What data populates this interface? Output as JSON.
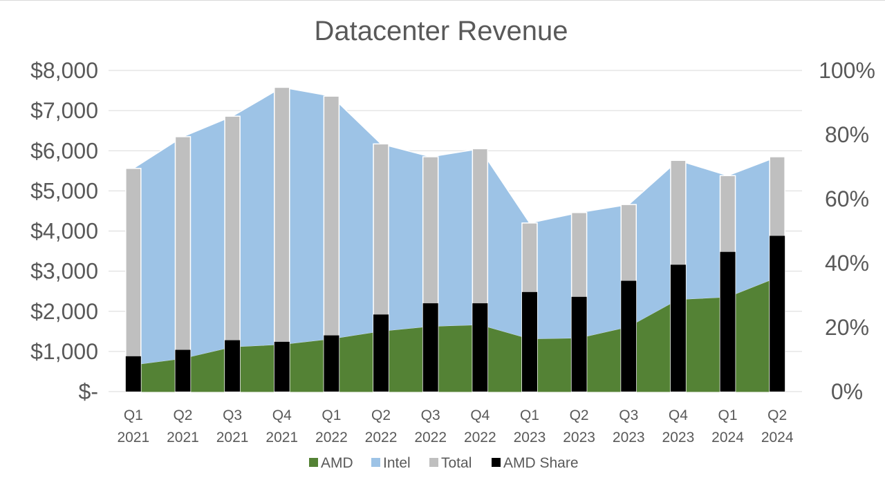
{
  "chart_data": {
    "type": "combo",
    "title": "Datacenter Revenue",
    "categories": [
      {
        "quarter": "Q1",
        "year": "2021"
      },
      {
        "quarter": "Q2",
        "year": "2021"
      },
      {
        "quarter": "Q3",
        "year": "2021"
      },
      {
        "quarter": "Q4",
        "year": "2021"
      },
      {
        "quarter": "Q1",
        "year": "2022"
      },
      {
        "quarter": "Q2",
        "year": "2022"
      },
      {
        "quarter": "Q3",
        "year": "2022"
      },
      {
        "quarter": "Q4",
        "year": "2022"
      },
      {
        "quarter": "Q1",
        "year": "2023"
      },
      {
        "quarter": "Q2",
        "year": "2023"
      },
      {
        "quarter": "Q3",
        "year": "2023"
      },
      {
        "quarter": "Q4",
        "year": "2023"
      },
      {
        "quarter": "Q1",
        "year": "2024"
      },
      {
        "quarter": "Q2",
        "year": "2024"
      }
    ],
    "series": [
      {
        "name": "AMD",
        "kind": "area",
        "axis": "left",
        "color": "#548235",
        "values": [
          650,
          810,
          1100,
          1160,
          1300,
          1490,
          1610,
          1650,
          1300,
          1320,
          1600,
          2280,
          2340,
          2830
        ]
      },
      {
        "name": "Intel",
        "kind": "area",
        "axis": "left",
        "color": "#9dc3e6",
        "values": [
          4910,
          5540,
          5760,
          6420,
          6060,
          4680,
          4240,
          4400,
          2900,
          3140,
          3060,
          3480,
          3040,
          3020
        ]
      },
      {
        "name": "Total",
        "kind": "bar",
        "axis": "left",
        "color": "#bfbfbf",
        "values": [
          5560,
          6350,
          6860,
          7580,
          7360,
          6170,
          5850,
          6050,
          4200,
          4460,
          4660,
          5760,
          5380,
          5850
        ]
      },
      {
        "name": "AMD Share",
        "kind": "bar",
        "axis": "right",
        "color": "#000000",
        "values": [
          11,
          13,
          16,
          15.5,
          17.5,
          24,
          27.5,
          27.5,
          31,
          29.5,
          34.5,
          39.5,
          43.5,
          48.5
        ]
      }
    ],
    "y_left": {
      "min": 0,
      "max": 8000,
      "step": 1000,
      "tick_labels": [
        "$-",
        "$1,000",
        "$2,000",
        "$3,000",
        "$4,000",
        "$5,000",
        "$6,000",
        "$7,000",
        "$8,000"
      ]
    },
    "y_right": {
      "min": 0,
      "max": 100,
      "step": 20,
      "tick_labels": [
        "0%",
        "20%",
        "40%",
        "60%",
        "80%",
        "100%"
      ]
    },
    "legend": {
      "position": "bottom",
      "items": [
        "AMD",
        "Intel",
        "Total",
        "AMD Share"
      ]
    },
    "grid": true
  }
}
